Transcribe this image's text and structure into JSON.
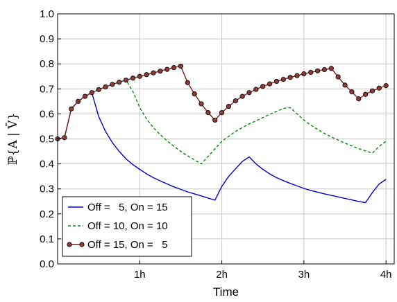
{
  "chart_data": {
    "type": "line",
    "xlabel": "Time",
    "ylabel": "ℙ{A | V̄}",
    "xlim": [
      0,
      4.1
    ],
    "ylim": [
      0,
      1.0
    ],
    "x_ticks": [
      {
        "value": 1,
        "label": "1h"
      },
      {
        "value": 2,
        "label": "2h"
      },
      {
        "value": 3,
        "label": "3h"
      },
      {
        "value": 4,
        "label": "4h"
      }
    ],
    "y_ticks": [
      {
        "value": 0.0,
        "label": "0.0"
      },
      {
        "value": 0.1,
        "label": "0.1"
      },
      {
        "value": 0.2,
        "label": "0.2"
      },
      {
        "value": 0.3,
        "label": "0.3"
      },
      {
        "value": 0.4,
        "label": "0.4"
      },
      {
        "value": 0.5,
        "label": "0.5"
      },
      {
        "value": 0.6,
        "label": "0.6"
      },
      {
        "value": 0.7,
        "label": "0.7"
      },
      {
        "value": 0.8,
        "label": "0.8"
      },
      {
        "value": 0.9,
        "label": "0.9"
      },
      {
        "value": 1.0,
        "label": "1.0"
      }
    ],
    "grid": true,
    "legend_position": "bottom-left",
    "series": [
      {
        "name": "Off =   5, On = 15",
        "color": "#0000cc",
        "style": "solid",
        "marker": "none",
        "x": [
          0,
          0.0833,
          0.1667,
          0.25,
          0.3333,
          0.4167,
          0.5,
          0.5833,
          0.6667,
          0.75,
          0.8333,
          0.9167,
          1.0,
          1.0833,
          1.1667,
          1.25,
          1.3333,
          1.4167,
          1.5,
          1.5833,
          1.6667,
          1.75,
          1.8333,
          1.9167,
          2.0,
          2.0833,
          2.1667,
          2.25,
          2.3333,
          2.4167,
          2.5,
          2.5833,
          2.6667,
          2.75,
          2.8333,
          2.9167,
          3.0,
          3.0833,
          3.1667,
          3.25,
          3.3333,
          3.4167,
          3.5,
          3.5833,
          3.6667,
          3.75,
          3.8333,
          3.9167,
          4.0
        ],
        "values": [
          0.5,
          0.505,
          0.62,
          0.65,
          0.67,
          0.685,
          0.59,
          0.53,
          0.485,
          0.45,
          0.42,
          0.397,
          0.378,
          0.36,
          0.345,
          0.332,
          0.32,
          0.308,
          0.298,
          0.288,
          0.28,
          0.272,
          0.263,
          0.255,
          0.31,
          0.35,
          0.38,
          0.41,
          0.428,
          0.4,
          0.378,
          0.36,
          0.345,
          0.333,
          0.322,
          0.312,
          0.302,
          0.294,
          0.287,
          0.28,
          0.274,
          0.268,
          0.262,
          0.256,
          0.25,
          0.245,
          0.285,
          0.32,
          0.338
        ]
      },
      {
        "name": "Off = 10, On = 10",
        "color": "#008800",
        "style": "dashed",
        "marker": "none",
        "x": [
          0,
          0.0833,
          0.1667,
          0.25,
          0.3333,
          0.4167,
          0.5,
          0.5833,
          0.6667,
          0.75,
          0.8333,
          0.9167,
          1.0,
          1.0833,
          1.1667,
          1.25,
          1.3333,
          1.4167,
          1.5,
          1.5833,
          1.6667,
          1.75,
          1.8333,
          1.9167,
          2.0,
          2.0833,
          2.1667,
          2.25,
          2.3333,
          2.4167,
          2.5,
          2.5833,
          2.6667,
          2.75,
          2.8333,
          2.9167,
          3.0,
          3.0833,
          3.1667,
          3.25,
          3.3333,
          3.4167,
          3.5,
          3.5833,
          3.6667,
          3.75,
          3.8333,
          3.9167,
          4.0
        ],
        "values": [
          0.5,
          0.505,
          0.62,
          0.65,
          0.67,
          0.685,
          0.697,
          0.708,
          0.718,
          0.727,
          0.735,
          0.69,
          0.625,
          0.58,
          0.545,
          0.517,
          0.492,
          0.47,
          0.45,
          0.432,
          0.416,
          0.4,
          0.43,
          0.46,
          0.49,
          0.51,
          0.53,
          0.545,
          0.56,
          0.572,
          0.585,
          0.598,
          0.61,
          0.622,
          0.625,
          0.6,
          0.575,
          0.555,
          0.538,
          0.522,
          0.508,
          0.495,
          0.483,
          0.472,
          0.461,
          0.452,
          0.443,
          0.47,
          0.49
        ]
      },
      {
        "name": "Off = 15, On =   5",
        "color": "#7a1f1f",
        "marker_fill": "#8b3a3a",
        "style": "solid",
        "marker": "circle",
        "x": [
          0,
          0.0833,
          0.1667,
          0.25,
          0.3333,
          0.4167,
          0.5,
          0.5833,
          0.6667,
          0.75,
          0.8333,
          0.9167,
          1.0,
          1.0833,
          1.1667,
          1.25,
          1.3333,
          1.4167,
          1.5,
          1.5833,
          1.6667,
          1.75,
          1.8333,
          1.9167,
          2.0,
          2.0833,
          2.1667,
          2.25,
          2.3333,
          2.4167,
          2.5,
          2.5833,
          2.6667,
          2.75,
          2.8333,
          2.9167,
          3.0,
          3.0833,
          3.1667,
          3.25,
          3.3333,
          3.4167,
          3.5,
          3.5833,
          3.6667,
          3.75,
          3.8333,
          3.9167,
          4.0
        ],
        "values": [
          0.5,
          0.505,
          0.62,
          0.65,
          0.67,
          0.685,
          0.697,
          0.708,
          0.718,
          0.727,
          0.735,
          0.743,
          0.75,
          0.757,
          0.764,
          0.771,
          0.778,
          0.785,
          0.791,
          0.725,
          0.68,
          0.64,
          0.605,
          0.575,
          0.605,
          0.63,
          0.652,
          0.67,
          0.685,
          0.698,
          0.71,
          0.72,
          0.73,
          0.738,
          0.746,
          0.753,
          0.76,
          0.766,
          0.772,
          0.777,
          0.782,
          0.748,
          0.715,
          0.688,
          0.66,
          0.678,
          0.692,
          0.703,
          0.713
        ]
      }
    ]
  }
}
